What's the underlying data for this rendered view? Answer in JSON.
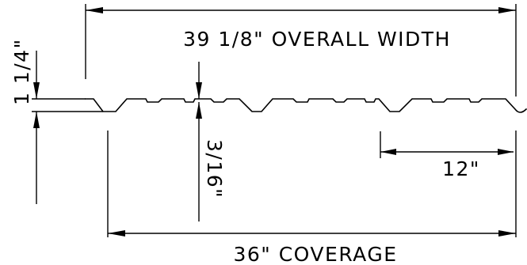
{
  "drawing": {
    "overall_width_label": "39 1/8\" OVERALL WIDTH",
    "coverage_label": "36\" COVERAGE",
    "rib_spacing_label": "12\"",
    "rib_depth_label": "3/16\"",
    "panel_height_label": "1 1/4\""
  },
  "colors": {
    "line": "#000000",
    "background": "#ffffff"
  }
}
